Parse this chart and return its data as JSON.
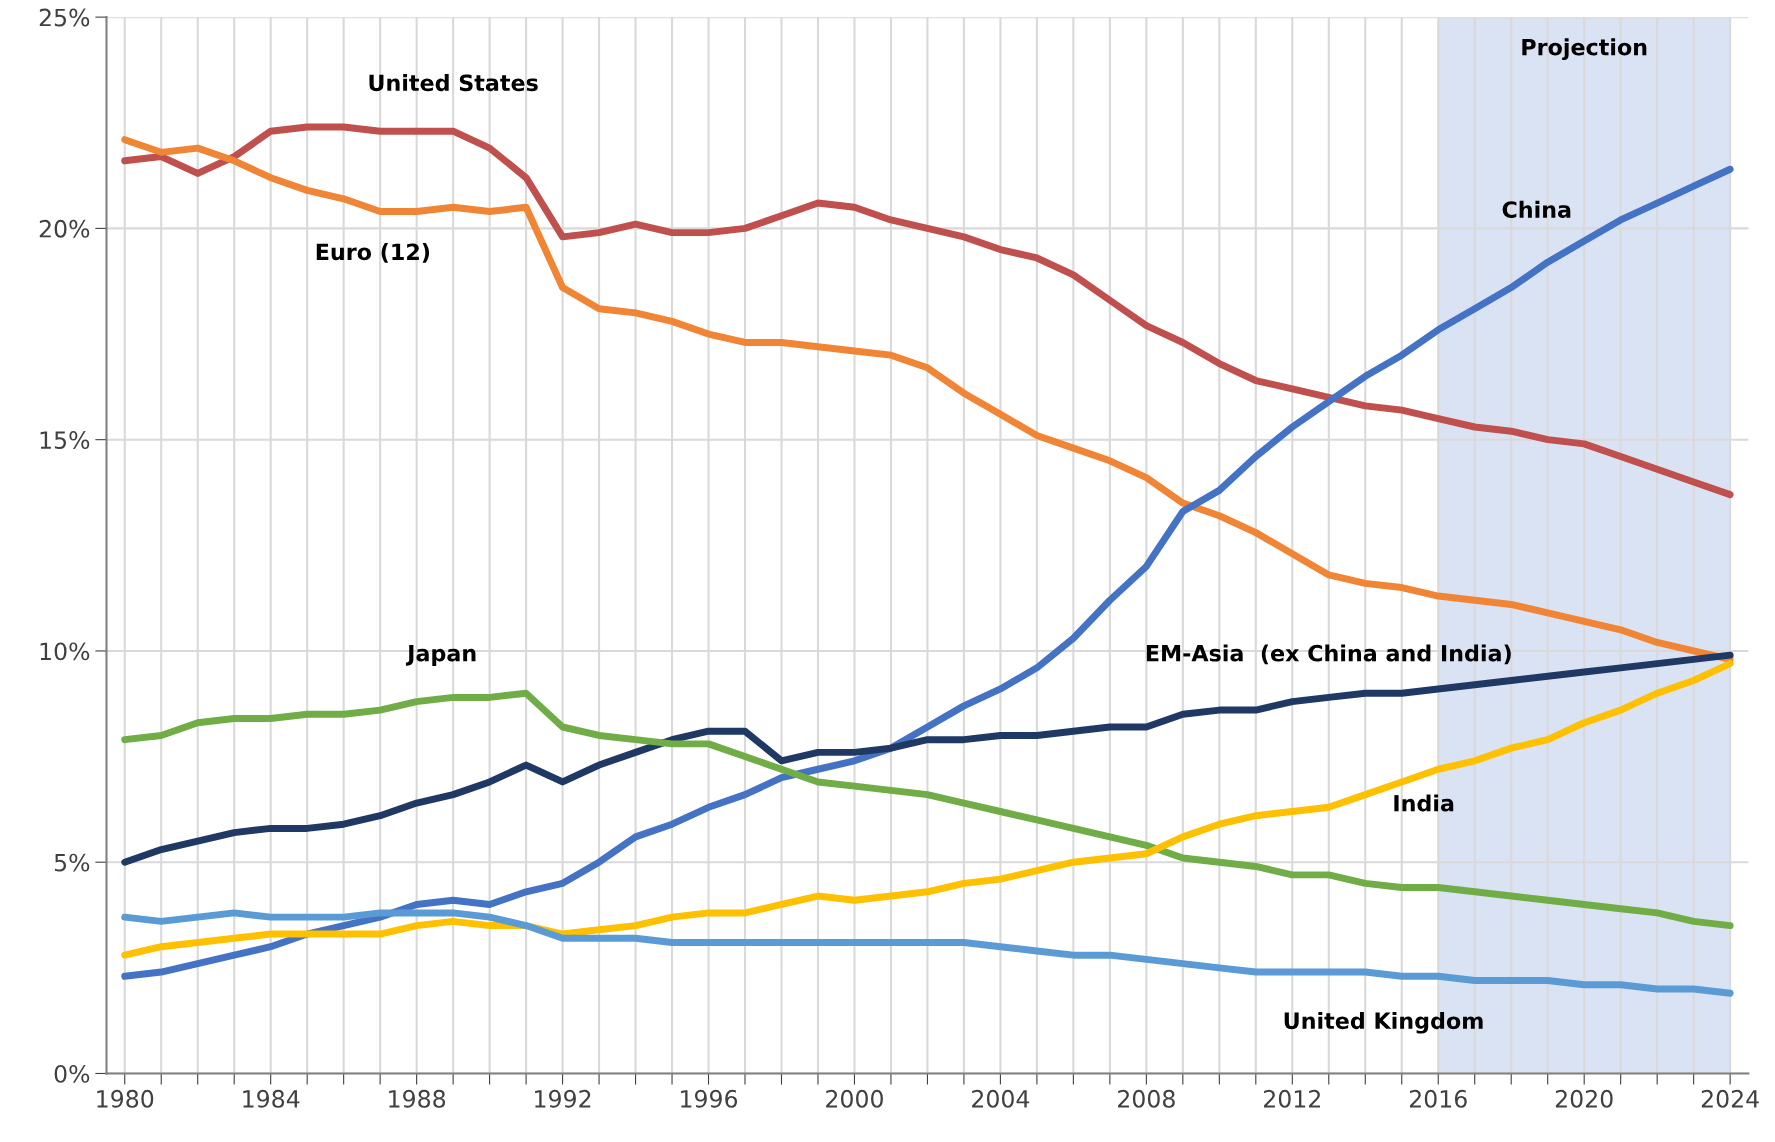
{
  "chart_data": {
    "type": "line",
    "x": [
      1980,
      1981,
      1982,
      1983,
      1984,
      1985,
      1986,
      1987,
      1988,
      1989,
      1990,
      1991,
      1992,
      1993,
      1994,
      1995,
      1996,
      1997,
      1998,
      1999,
      2000,
      2001,
      2002,
      2003,
      2004,
      2005,
      2006,
      2007,
      2008,
      2009,
      2010,
      2011,
      2012,
      2013,
      2014,
      2015,
      2016,
      2017,
      2018,
      2019,
      2020,
      2021,
      2022,
      2023,
      2024
    ],
    "series": [
      {
        "name": "United States",
        "color": "#c0504d",
        "values": [
          21.6,
          21.7,
          21.3,
          21.7,
          22.3,
          22.4,
          22.4,
          22.3,
          22.3,
          22.3,
          21.9,
          21.2,
          19.8,
          19.9,
          20.1,
          19.9,
          19.9,
          20.0,
          20.3,
          20.6,
          20.5,
          20.2,
          20.0,
          19.8,
          19.5,
          19.3,
          18.9,
          18.3,
          17.7,
          17.3,
          16.8,
          16.4,
          16.2,
          16.0,
          15.8,
          15.7,
          15.5,
          15.3,
          15.2,
          15.0,
          14.9,
          14.6,
          14.3,
          14.0,
          13.7
        ]
      },
      {
        "name": "Euro (12)",
        "color": "#f08536",
        "values": [
          22.1,
          21.8,
          21.9,
          21.6,
          21.2,
          20.9,
          20.7,
          20.4,
          20.4,
          20.5,
          20.4,
          20.5,
          18.6,
          18.1,
          18.0,
          17.8,
          17.5,
          17.3,
          17.3,
          17.2,
          17.1,
          17.0,
          16.7,
          16.1,
          15.6,
          15.1,
          14.8,
          14.5,
          14.1,
          13.5,
          13.2,
          12.8,
          12.3,
          11.8,
          11.6,
          11.5,
          11.3,
          11.2,
          11.1,
          10.9,
          10.7,
          10.5,
          10.2,
          10.0,
          9.8
        ]
      },
      {
        "name": "China",
        "color": "#4472c4",
        "values": [
          2.3,
          2.4,
          2.6,
          2.8,
          3.0,
          3.3,
          3.5,
          3.7,
          4.0,
          4.1,
          4.0,
          4.3,
          4.5,
          5.0,
          5.6,
          5.9,
          6.3,
          6.6,
          7.0,
          7.2,
          7.4,
          7.7,
          8.2,
          8.7,
          9.1,
          9.6,
          10.3,
          11.2,
          12.0,
          13.3,
          13.8,
          14.6,
          15.3,
          15.9,
          16.5,
          17.0,
          17.6,
          18.1,
          18.6,
          19.2,
          19.7,
          20.2,
          20.6,
          21.0,
          21.4
        ]
      },
      {
        "name": "EM-Asia  (ex China and India)",
        "color": "#1f3864",
        "values": [
          5.0,
          5.3,
          5.5,
          5.7,
          5.8,
          5.8,
          5.9,
          6.1,
          6.4,
          6.6,
          6.9,
          7.3,
          6.9,
          7.3,
          7.6,
          7.9,
          8.1,
          8.1,
          7.4,
          7.6,
          7.6,
          7.7,
          7.9,
          7.9,
          8.0,
          8.0,
          8.1,
          8.2,
          8.2,
          8.5,
          8.6,
          8.6,
          8.8,
          8.9,
          9.0,
          9.0,
          9.1,
          9.2,
          9.3,
          9.4,
          9.5,
          9.6,
          9.7,
          9.8,
          9.9
        ]
      },
      {
        "name": "Japan",
        "color": "#70ad47",
        "values": [
          7.9,
          8.0,
          8.3,
          8.4,
          8.4,
          8.5,
          8.5,
          8.6,
          8.8,
          8.9,
          8.9,
          9.0,
          8.2,
          8.0,
          7.9,
          7.8,
          7.8,
          7.5,
          7.2,
          6.9,
          6.8,
          6.7,
          6.6,
          6.4,
          6.2,
          6.0,
          5.8,
          5.6,
          5.4,
          5.1,
          5.0,
          4.9,
          4.7,
          4.7,
          4.5,
          4.4,
          4.4,
          4.3,
          4.2,
          4.1,
          4.0,
          3.9,
          3.8,
          3.6,
          3.5
        ]
      },
      {
        "name": "India",
        "color": "#ffc000",
        "values": [
          2.8,
          3.0,
          3.1,
          3.2,
          3.3,
          3.3,
          3.3,
          3.3,
          3.5,
          3.6,
          3.5,
          3.5,
          3.3,
          3.4,
          3.5,
          3.7,
          3.8,
          3.8,
          4.0,
          4.2,
          4.1,
          4.2,
          4.3,
          4.5,
          4.6,
          4.8,
          5.0,
          5.1,
          5.2,
          5.6,
          5.9,
          6.1,
          6.2,
          6.3,
          6.6,
          6.9,
          7.2,
          7.4,
          7.7,
          7.9,
          8.3,
          8.6,
          9.0,
          9.3,
          9.7
        ]
      },
      {
        "name": "United Kingdom",
        "color": "#5b9bd5",
        "values": [
          3.7,
          3.6,
          3.7,
          3.8,
          3.7,
          3.7,
          3.7,
          3.8,
          3.8,
          3.8,
          3.7,
          3.5,
          3.2,
          3.2,
          3.2,
          3.1,
          3.1,
          3.1,
          3.1,
          3.1,
          3.1,
          3.1,
          3.1,
          3.1,
          3.0,
          2.9,
          2.8,
          2.8,
          2.7,
          2.6,
          2.5,
          2.4,
          2.4,
          2.4,
          2.4,
          2.3,
          2.3,
          2.2,
          2.2,
          2.2,
          2.1,
          2.1,
          2.0,
          2.0,
          1.9
        ]
      }
    ],
    "bands": [
      {
        "axis": "x",
        "from": 2016,
        "to": 2024,
        "label": "Projection",
        "color": "#dae3f3"
      }
    ],
    "xlim": [
      1979.5,
      2024.5
    ],
    "xticks": [
      1980,
      {
        "value": 1981,
        "label": null
      },
      {
        "value": 1982,
        "label": null
      },
      {
        "value": 1983,
        "label": null
      },
      1984,
      {
        "value": 1985,
        "label": null
      },
      {
        "value": 1986,
        "label": null
      },
      {
        "value": 1987,
        "label": null
      },
      1988,
      {
        "value": 1989,
        "label": null
      },
      {
        "value": 1990,
        "label": null
      },
      {
        "value": 1991,
        "label": null
      },
      1992,
      {
        "value": 1993,
        "label": null
      },
      {
        "value": 1994,
        "label": null
      },
      {
        "value": 1995,
        "label": null
      },
      1996,
      {
        "value": 1997,
        "label": null
      },
      {
        "value": 1998,
        "label": null
      },
      {
        "value": 1999,
        "label": null
      },
      2000,
      {
        "value": 2001,
        "label": null
      },
      {
        "value": 2002,
        "label": null
      },
      {
        "value": 2003,
        "label": null
      },
      2004,
      {
        "value": 2005,
        "label": null
      },
      {
        "value": 2006,
        "label": null
      },
      {
        "value": 2007,
        "label": null
      },
      2008,
      {
        "value": 2009,
        "label": null
      },
      {
        "value": 2010,
        "label": null
      },
      {
        "value": 2011,
        "label": null
      },
      2012,
      {
        "value": 2013,
        "label": null
      },
      {
        "value": 2014,
        "label": null
      },
      {
        "value": 2015,
        "label": null
      },
      2016,
      {
        "value": 2017,
        "label": null
      },
      {
        "value": 2018,
        "label": null
      },
      {
        "value": 2019,
        "label": null
      },
      2020,
      {
        "value": 2021,
        "label": null
      },
      {
        "value": 2022,
        "label": null
      },
      {
        "value": 2023,
        "label": null
      },
      2024
    ],
    "ylim": [
      0,
      25
    ],
    "yticks": [
      {
        "value": 0,
        "label": "0%"
      },
      {
        "value": 5,
        "label": "5%"
      },
      {
        "value": 10,
        "label": "10%"
      },
      {
        "value": 15,
        "label": "15%"
      },
      {
        "value": 20,
        "label": "20%"
      },
      {
        "value": 25,
        "label": "25%"
      }
    ],
    "grid": true,
    "legend": false,
    "marker": "none",
    "line_style": "solid"
  }
}
